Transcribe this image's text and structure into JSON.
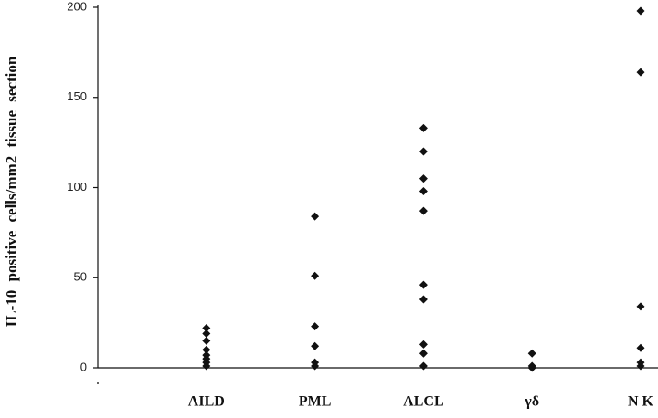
{
  "chart_data": {
    "type": "strip",
    "y_label": "IL-10  positive  cells/mm2  tissue  section",
    "categories": [
      "AILD",
      "PML",
      "ALCL",
      "γδ",
      "N K"
    ],
    "values": [
      [
        22,
        19,
        15,
        10,
        7,
        5,
        3,
        1
      ],
      [
        84,
        51,
        23,
        12,
        3,
        1
      ],
      [
        133,
        120,
        105,
        98,
        87,
        46,
        38,
        13,
        8,
        1
      ],
      [
        8,
        1,
        0
      ],
      [
        198,
        164,
        34,
        11,
        3,
        1
      ]
    ],
    "color": "#111111",
    "ylim": [
      0,
      200
    ],
    "yticks": [
      0,
      50,
      100,
      150,
      200
    ]
  }
}
